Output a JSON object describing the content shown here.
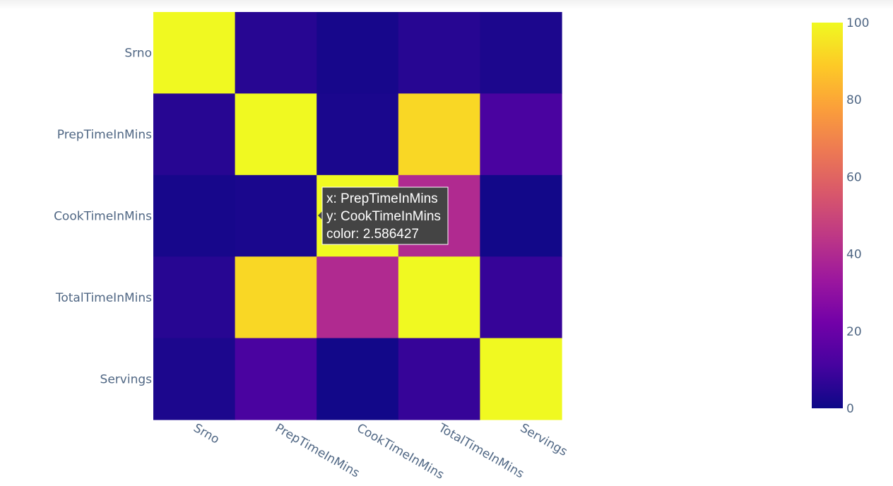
{
  "chart_data": {
    "type": "heatmap",
    "x": [
      "Srno",
      "PrepTimeInMins",
      "CookTimeInMins",
      "TotalTimeInMins",
      "Servings"
    ],
    "y": [
      "Srno",
      "PrepTimeInMins",
      "CookTimeInMins",
      "TotalTimeInMins",
      "Servings"
    ],
    "z": [
      [
        100,
        5,
        2,
        5,
        3
      ],
      [
        5,
        100,
        2.586427,
        92,
        12
      ],
      [
        2,
        2.586427,
        100,
        40,
        1
      ],
      [
        5,
        92,
        40,
        100,
        8
      ],
      [
        3,
        12,
        1,
        8,
        100
      ]
    ],
    "colorscale": "plasma",
    "colorbar": {
      "min": 0,
      "max": 100,
      "ticks": [
        0,
        20,
        40,
        60,
        80,
        100
      ]
    },
    "grid": false,
    "tooltip": {
      "x_line": "x: PrepTimeInMins",
      "y_line": "y: CookTimeInMins",
      "color_line": "color: 2.586427"
    }
  }
}
